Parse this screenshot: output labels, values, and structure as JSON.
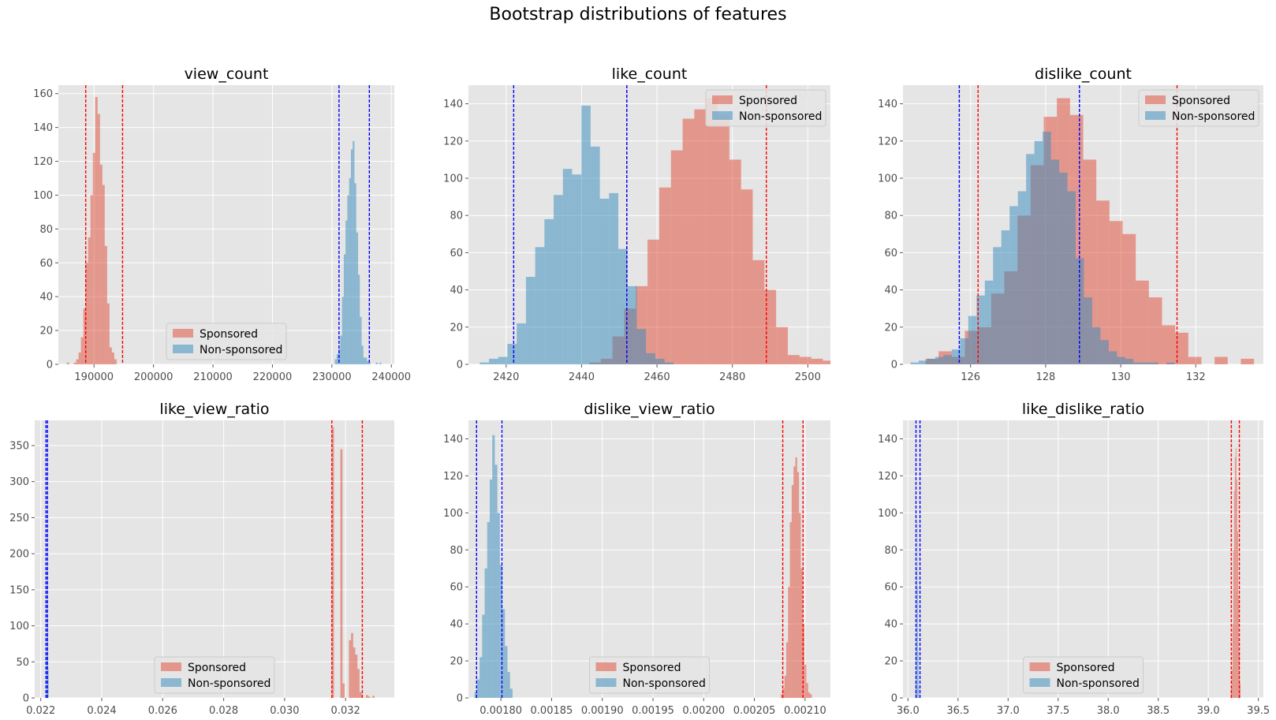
{
  "figure": {
    "suptitle": "Bootstrap distributions of features"
  },
  "colors": {
    "sponsored": "#E24A33",
    "non_sponsored": "#348ABD",
    "axes_bg": "#E5E5E5",
    "grid": "#FFFFFF",
    "ci_sponsored": "#FF0000",
    "ci_non_sponsored": "#0000FF"
  },
  "chart_data": [
    {
      "type": "histogram",
      "title": "view_count",
      "xlim": [
        184000,
        240500
      ],
      "ylim": [
        0,
        165
      ],
      "xticks": [
        190000,
        200000,
        210000,
        220000,
        230000,
        240000
      ],
      "xtick_labels": [
        "190000",
        "200000",
        "210000",
        "220000",
        "230000",
        "240000"
      ],
      "yticks": [
        0,
        20,
        40,
        60,
        80,
        100,
        120,
        140,
        160
      ],
      "legend": {
        "loc": "lower center",
        "labels": [
          "Sponsored",
          "Non-sponsored"
        ]
      },
      "series": [
        {
          "name": "Sponsored",
          "bin_start": 185400,
          "bin_width": 400,
          "counts": [
            1,
            0,
            0,
            1,
            3,
            7,
            16,
            33,
            60,
            75,
            100,
            125,
            158,
            148,
            118,
            106,
            70,
            36,
            10,
            7,
            3
          ]
        },
        {
          "name": "Non-sponsored",
          "bin_start": 230500,
          "bin_width": 300,
          "counts": [
            3,
            6,
            9,
            17,
            40,
            65,
            85,
            100,
            110,
            127,
            132,
            107,
            78,
            53,
            28,
            11,
            4,
            4,
            2,
            1,
            0,
            0,
            0,
            1,
            0,
            1
          ]
        }
      ],
      "ci_lines": {
        "sponsored": [
          188600,
          194800
        ],
        "non_sponsored": [
          231200,
          236300
        ]
      }
    },
    {
      "type": "histogram",
      "title": "like_count",
      "xlim": [
        2410,
        2506
      ],
      "ylim": [
        0,
        150
      ],
      "xticks": [
        2420,
        2440,
        2460,
        2480,
        2500
      ],
      "xtick_labels": [
        "2420",
        "2440",
        "2460",
        "2480",
        "2500"
      ],
      "yticks": [
        0,
        20,
        40,
        60,
        80,
        100,
        120,
        140
      ],
      "legend": {
        "loc": "upper right",
        "labels": [
          "Sponsored",
          "Non-sponsored"
        ]
      },
      "series": [
        {
          "name": "Sponsored",
          "bin_start": 2442,
          "bin_width": 3.1,
          "counts": [
            1,
            3,
            15,
            30,
            42,
            67,
            95,
            115,
            132,
            137,
            143,
            134,
            110,
            94,
            56,
            40,
            20,
            5,
            4,
            3,
            2
          ]
        },
        {
          "name": "Non-sponsored",
          "bin_start": 2413,
          "bin_width": 2.45,
          "counts": [
            1,
            3,
            4,
            11,
            22,
            47,
            63,
            78,
            91,
            105,
            102,
            139,
            117,
            89,
            92,
            62,
            42,
            19,
            6,
            3,
            1
          ]
        }
      ],
      "ci_lines": {
        "sponsored": [
          2452,
          2489
        ],
        "non_sponsored": [
          2422,
          2452
        ]
      }
    },
    {
      "type": "histogram",
      "title": "dislike_count",
      "xlim": [
        124.2,
        133.8
      ],
      "ylim": [
        0,
        150
      ],
      "xticks": [
        126,
        128,
        130,
        132
      ],
      "xtick_labels": [
        "126",
        "128",
        "130",
        "132"
      ],
      "yticks": [
        0,
        20,
        40,
        60,
        80,
        100,
        120,
        140
      ],
      "legend": {
        "loc": "upper right",
        "labels": [
          "Sponsored",
          "Non-sponsored"
        ]
      },
      "series": [
        {
          "name": "Sponsored",
          "bin_start": 124.8,
          "bin_width": 0.35,
          "counts": [
            3,
            7,
            4,
            18,
            20,
            38,
            50,
            80,
            107,
            133,
            143,
            134,
            110,
            88,
            77,
            70,
            45,
            36,
            21,
            17,
            4,
            0,
            4,
            0,
            3
          ]
        },
        {
          "name": "Non-sponsored",
          "bin_start": 124.4,
          "bin_width": 0.22,
          "counts": [
            1,
            2,
            3,
            4,
            5,
            8,
            14,
            26,
            37,
            45,
            63,
            72,
            85,
            93,
            113,
            120,
            125,
            110,
            103,
            93,
            57,
            36,
            20,
            13,
            7,
            4,
            3,
            1,
            1,
            1,
            0,
            1
          ]
        }
      ],
      "ci_lines": {
        "sponsored": [
          126.2,
          131.5
        ],
        "non_sponsored": [
          125.7,
          128.9
        ]
      }
    },
    {
      "type": "histogram",
      "title": "like_view_ratio",
      "xlim": [
        0.0218,
        0.0336
      ],
      "ylim": [
        0,
        385
      ],
      "xticks": [
        0.022,
        0.024,
        0.026,
        0.028,
        0.03,
        0.032
      ],
      "xtick_labels": [
        "0.022",
        "0.024",
        "0.026",
        "0.028",
        "0.030",
        "0.032"
      ],
      "yticks": [
        0,
        50,
        100,
        150,
        200,
        250,
        300,
        350
      ],
      "legend": {
        "loc": "lower center",
        "labels": [
          "Sponsored",
          "Non-sponsored"
        ]
      },
      "series": [
        {
          "name": "Sponsored",
          "bin_start": 0.03155,
          "bin_width": 7e-05,
          "counts": [
            375,
            0,
            0,
            0,
            345,
            20,
            0,
            0,
            80,
            90,
            70,
            60,
            40,
            8,
            0,
            0,
            4,
            2,
            0,
            3
          ]
        },
        {
          "name": "Non-sponsored",
          "bin_start": 0.02218,
          "bin_width": 1.5e-05,
          "counts": [
            60,
            180,
            360,
            110,
            40
          ]
        }
      ],
      "ci_lines": {
        "sponsored": [
          0.03155,
          0.03255
        ],
        "non_sponsored": [
          0.02217,
          0.02222
        ]
      }
    },
    {
      "type": "histogram",
      "title": "dislike_view_ratio",
      "xlim": [
        0.001768,
        0.002125
      ],
      "ylim": [
        0,
        150
      ],
      "xticks": [
        0.0018,
        0.00185,
        0.0019,
        0.00195,
        0.002,
        0.00205,
        0.0021
      ],
      "xtick_labels": [
        "0.00180",
        "0.00185",
        "0.00190",
        "0.00195",
        "0.00200",
        "0.00205",
        "0.00210"
      ],
      "yticks": [
        0,
        20,
        40,
        60,
        80,
        100,
        120,
        140
      ],
      "legend": {
        "loc": "lower center",
        "labels": [
          "Sponsored",
          "Non-sponsored"
        ]
      },
      "series": [
        {
          "name": "Sponsored",
          "bin_start": 0.002076,
          "bin_width": 1.8e-06,
          "counts": [
            2,
            5,
            12,
            30,
            60,
            95,
            115,
            125,
            130,
            122,
            100,
            70,
            40,
            18,
            8,
            3,
            2
          ]
        },
        {
          "name": "Non-sponsored",
          "bin_start": 0.001774,
          "bin_width": 2.5e-06,
          "counts": [
            3,
            10,
            22,
            45,
            70,
            95,
            118,
            142,
            126,
            100,
            72,
            48,
            28,
            14,
            5
          ]
        }
      ],
      "ci_lines": {
        "sponsored": [
          0.002078,
          0.002098
        ],
        "non_sponsored": [
          0.001776,
          0.001801
        ]
      }
    },
    {
      "type": "histogram",
      "title": "like_dislike_ratio",
      "xlim": [
        35.95,
        39.55
      ],
      "ylim": [
        0,
        150
      ],
      "xticks": [
        36.0,
        36.5,
        37.0,
        37.5,
        38.0,
        38.5,
        39.0,
        39.5
      ],
      "xtick_labels": [
        "36.0",
        "36.5",
        "37.0",
        "37.5",
        "38.0",
        "38.5",
        "39.0",
        "39.5"
      ],
      "yticks": [
        0,
        20,
        40,
        60,
        80,
        100,
        120,
        140
      ],
      "legend": {
        "loc": "lower center",
        "labels": [
          "Sponsored",
          "Non-sponsored"
        ]
      },
      "series": [
        {
          "name": "Sponsored",
          "bin_start": 39.225,
          "bin_width": 0.008,
          "counts": [
            5,
            15,
            40,
            80,
            112,
            130,
            135,
            118,
            90,
            55,
            25,
            8
          ]
        },
        {
          "name": "Non-sponsored",
          "bin_start": 36.075,
          "bin_width": 0.005,
          "counts": [
            8,
            30,
            70,
            95,
            60,
            25,
            6
          ]
        }
      ],
      "ci_lines": {
        "sponsored": [
          39.23,
          39.31
        ],
        "non_sponsored": [
          36.08,
          36.12
        ]
      }
    }
  ]
}
